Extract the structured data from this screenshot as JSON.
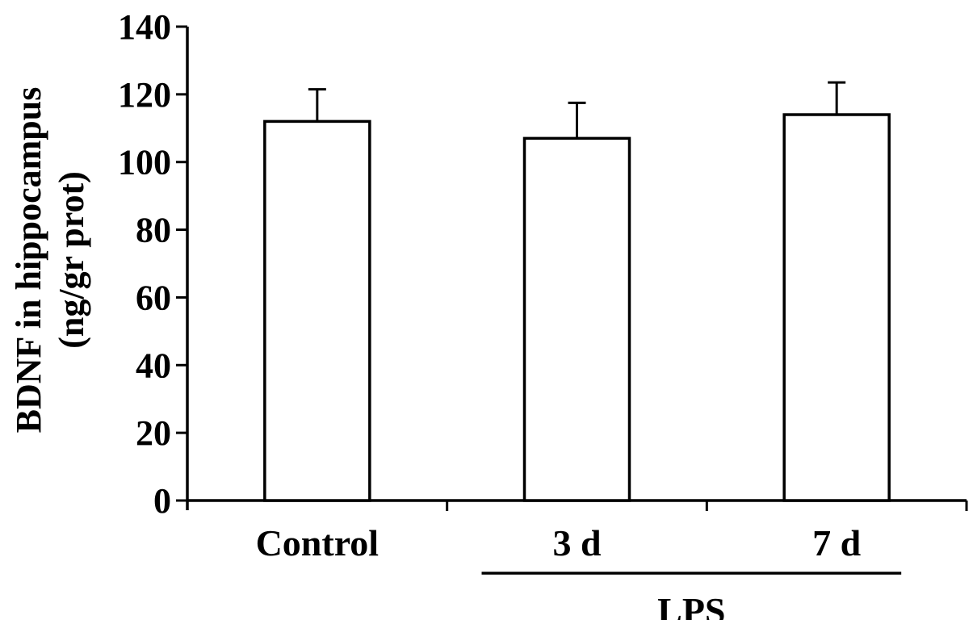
{
  "chart_data": {
    "type": "bar",
    "title": "",
    "ylabel_lines": [
      "BDNF in hippocampus",
      "(ng/gr prot)"
    ],
    "xlabel": "",
    "categories": [
      "Control",
      "3 d",
      "7 d"
    ],
    "values": [
      112,
      107,
      114
    ],
    "error_upper": [
      9.5,
      10.5,
      9.5
    ],
    "ylim": [
      0,
      140
    ],
    "yticks": [
      0,
      20,
      40,
      60,
      80,
      100,
      120,
      140
    ],
    "group_bracket": {
      "label": "LPS",
      "categories": [
        "3 d",
        "7 d"
      ]
    },
    "grid": false,
    "legend": "none",
    "colors": {
      "bar_fill": "#ffffff",
      "bar_stroke": "#000000",
      "axis": "#000000"
    }
  }
}
